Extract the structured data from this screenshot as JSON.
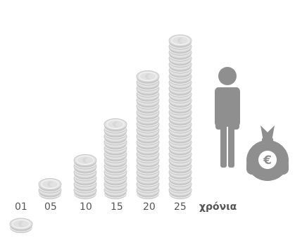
{
  "colors": {
    "coin_face": "#e2e2e2",
    "coin_edge": "#c9c9c9",
    "coin_line": "#f4f4f4",
    "coin_symbol": "#d6d6d6",
    "figure": "#8f8f8f",
    "bag": "#8f8f8f",
    "bag_symbol": "#ffffff",
    "label": "#555555"
  },
  "icons": {
    "coin": "euro-coin-icon",
    "person": "person-icon",
    "money_bag": "euro-money-bag-icon"
  },
  "timeline": {
    "unit_label": "χρόνια",
    "stacks": [
      {
        "year_label": "01",
        "coins": 1
      },
      {
        "year_label": "05",
        "coins": 2
      },
      {
        "year_label": "10",
        "coins": 6
      },
      {
        "year_label": "15",
        "coins": 12
      },
      {
        "year_label": "20",
        "coins": 20
      },
      {
        "year_label": "25",
        "coins": 26
      }
    ]
  }
}
